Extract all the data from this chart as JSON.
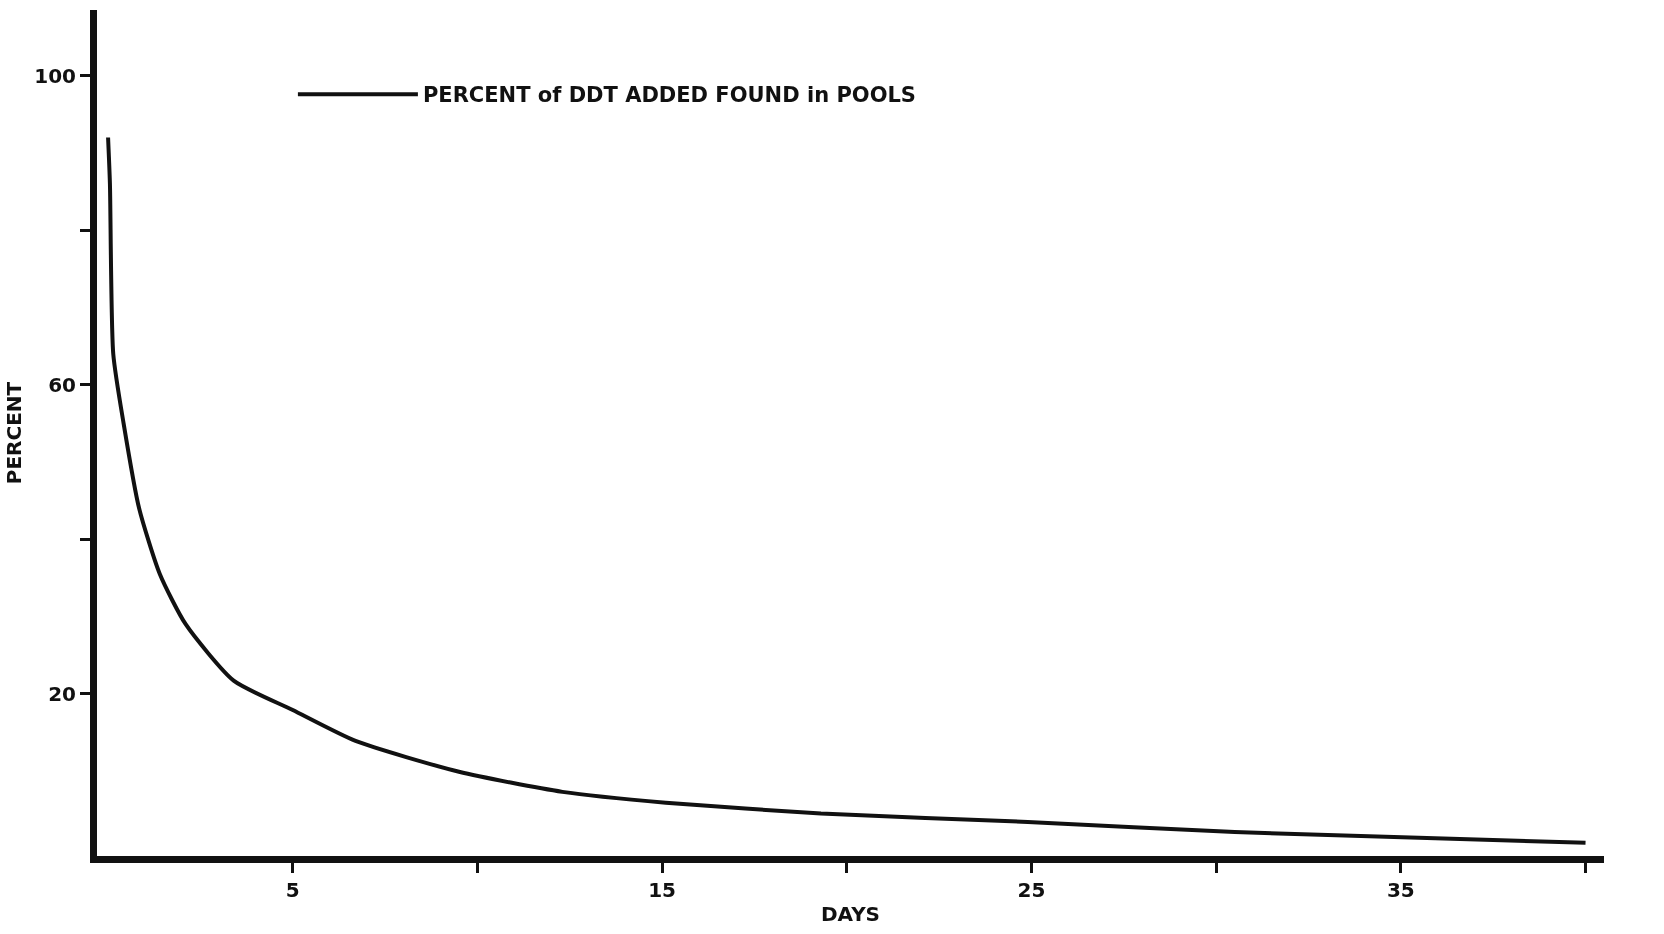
{
  "chart_data": {
    "type": "line",
    "xlabel": "DAYS",
    "ylabel": "PERCENT",
    "series": [
      {
        "name": "PERCENT of DDT ADDED FOUND in POOLS",
        "color": "#111111",
        "x": [
          0,
          0.05,
          0.14,
          0.42,
          0.84,
          1.4,
          2.1,
          3.4,
          5,
          6.7,
          9.5,
          12.3,
          15.1,
          19.3,
          24.9,
          30.5,
          40
        ],
        "values": [
          92,
          86,
          64,
          55,
          44,
          35.5,
          29,
          21.7,
          17.9,
          13.9,
          9.9,
          7.3,
          5.9,
          4.5,
          3.4,
          2.1,
          0.7
        ]
      }
    ],
    "xlim": [
      -0.3,
      40.5
    ],
    "ylim": [
      -1,
      108.5
    ],
    "xticks": [
      5,
      {
        "value": 10,
        "label": null
      },
      15,
      {
        "value": 20,
        "label": null
      },
      25,
      {
        "value": 30,
        "label": null
      },
      35,
      {
        "value": 40,
        "label": null
      }
    ],
    "yticks": [
      20,
      {
        "value": 40,
        "label": null
      },
      60,
      {
        "value": 80,
        "label": null
      },
      100
    ],
    "grid": false,
    "legend": "top",
    "marker": "none",
    "line_style": "solid"
  }
}
